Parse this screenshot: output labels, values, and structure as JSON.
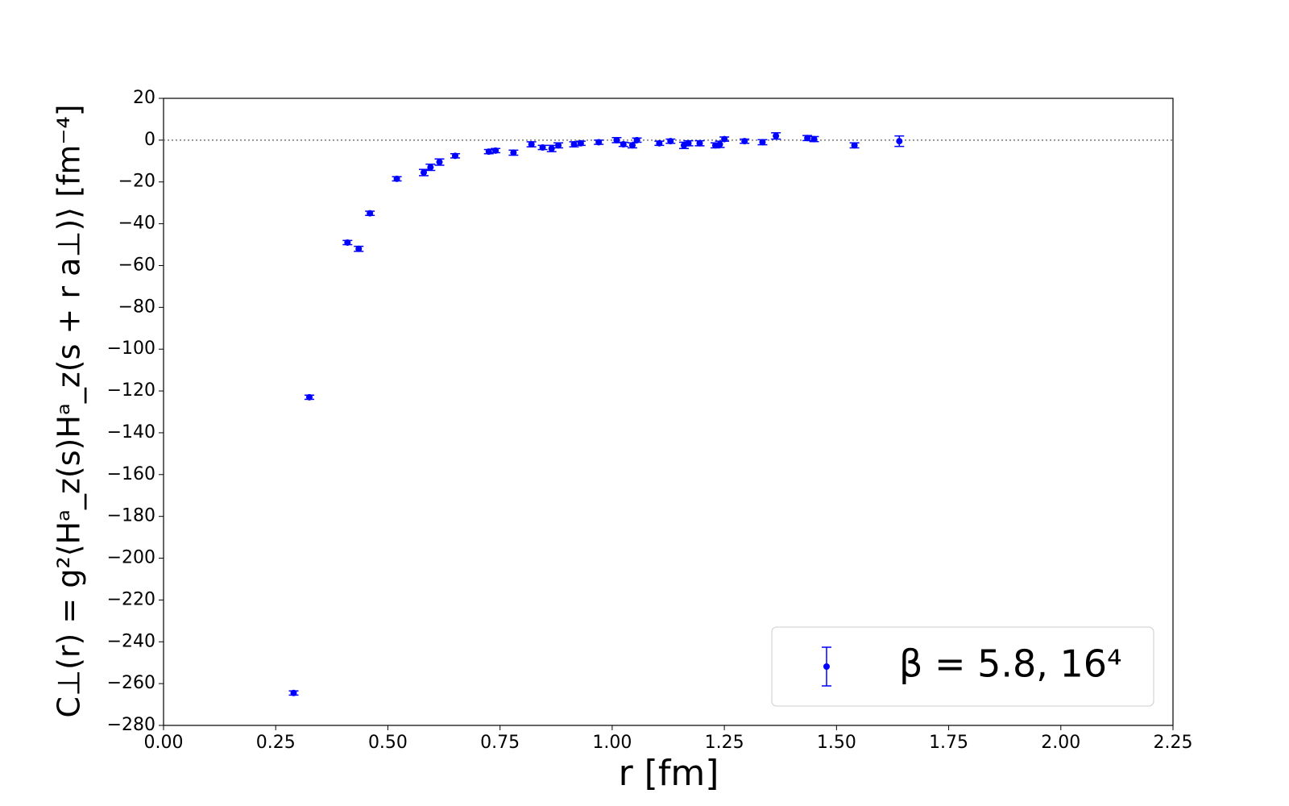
{
  "chart_data": {
    "type": "scatter",
    "xlabel": "r [fm]",
    "ylabel": "C⊥(r) = g²⟨Hᵃ_z(s)Hᵃ_z(s + r a⊥)⟩ [fm⁻⁴]",
    "xlim": [
      0,
      2.25
    ],
    "ylim": [
      -280,
      20
    ],
    "xticks": [
      {
        "value": 0,
        "label": "0.00"
      },
      {
        "value": 0.25,
        "label": "0.25"
      },
      {
        "value": 0.5,
        "label": "0.50"
      },
      {
        "value": 0.75,
        "label": "0.75"
      },
      {
        "value": 1,
        "label": "1.00"
      },
      {
        "value": 1.25,
        "label": "1.25"
      },
      {
        "value": 1.5,
        "label": "1.50"
      },
      {
        "value": 1.75,
        "label": "1.75"
      },
      {
        "value": 2,
        "label": "2.00"
      },
      {
        "value": 2.25,
        "label": "2.25"
      }
    ],
    "yticks": [
      20,
      0,
      {
        "value": -20,
        "label": "−20"
      },
      {
        "value": -40,
        "label": "−40"
      },
      {
        "value": -60,
        "label": "−60"
      },
      {
        "value": -80,
        "label": "−80"
      },
      {
        "value": -100,
        "label": "−100"
      },
      {
        "value": -120,
        "label": "−120"
      },
      {
        "value": -140,
        "label": "−140"
      },
      {
        "value": -160,
        "label": "−160"
      },
      {
        "value": -180,
        "label": "−180"
      },
      {
        "value": -200,
        "label": "−200"
      },
      {
        "value": -220,
        "label": "−220"
      },
      {
        "value": -240,
        "label": "−240"
      },
      {
        "value": -260,
        "label": "−260"
      },
      {
        "value": -280,
        "label": "−280"
      }
    ],
    "reference_line": 0,
    "legend": "lower right",
    "series": [
      {
        "name": "β = 5.8, 16⁴",
        "color": "#0000ff",
        "x": [
          0.29,
          0.325,
          0.41,
          0.435,
          0.46,
          0.52,
          0.58,
          0.595,
          0.615,
          0.65,
          0.725,
          0.74,
          0.78,
          0.82,
          0.845,
          0.865,
          0.88,
          0.915,
          0.93,
          0.97,
          1.01,
          1.025,
          1.045,
          1.055,
          1.105,
          1.13,
          1.16,
          1.17,
          1.195,
          1.23,
          1.24,
          1.25,
          1.295,
          1.335,
          1.365,
          1.435,
          1.45,
          1.54,
          1.64
        ],
        "values": [
          -264.5,
          -123,
          -49,
          -52,
          -35,
          -18.5,
          -15.5,
          -13,
          -10.5,
          -7.5,
          -5.5,
          -5,
          -6,
          -2,
          -3.5,
          -4,
          -2.5,
          -2,
          -1.5,
          -1,
          0,
          -2,
          -2.5,
          0,
          -1.5,
          -0.5,
          -2.5,
          -1.5,
          -1.5,
          -2.5,
          -2,
          0.5,
          -0.5,
          -1,
          2,
          1,
          0.5,
          -2.5,
          -0.5
        ],
        "errors": [
          1,
          1,
          1,
          1.2,
          1,
          1,
          1.5,
          1.5,
          1.5,
          1,
          1,
          1,
          1.2,
          1.2,
          1,
          1.5,
          1.2,
          1.2,
          1,
          1,
          1.2,
          1,
          1.2,
          1,
          1,
          1,
          1.5,
          1.2,
          1.2,
          1.2,
          1.5,
          1,
          1,
          1.2,
          1.5,
          1.2,
          1.2,
          1.2,
          2.5
        ]
      }
    ]
  }
}
